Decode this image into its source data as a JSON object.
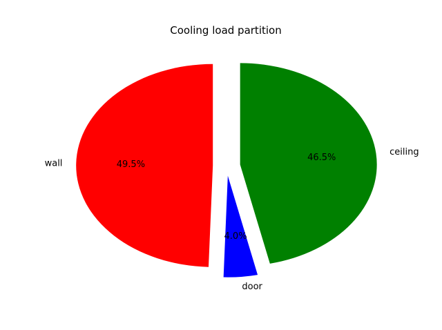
{
  "chart_data": {
    "type": "pie",
    "title": "Cooling load partition",
    "start_angle_deg": 90,
    "direction": "counterclockwise",
    "explode": [
      0.1,
      0.1,
      0.1
    ],
    "slices": [
      {
        "label": "wall",
        "value": 49.5,
        "pct_label": "49.5%",
        "color": "#ff0000"
      },
      {
        "label": "door",
        "value": 4.0,
        "pct_label": "4.0%",
        "color": "#0000ff"
      },
      {
        "label": "ceiling",
        "value": 46.5,
        "pct_label": "46.5%",
        "color": "#008000"
      }
    ]
  }
}
